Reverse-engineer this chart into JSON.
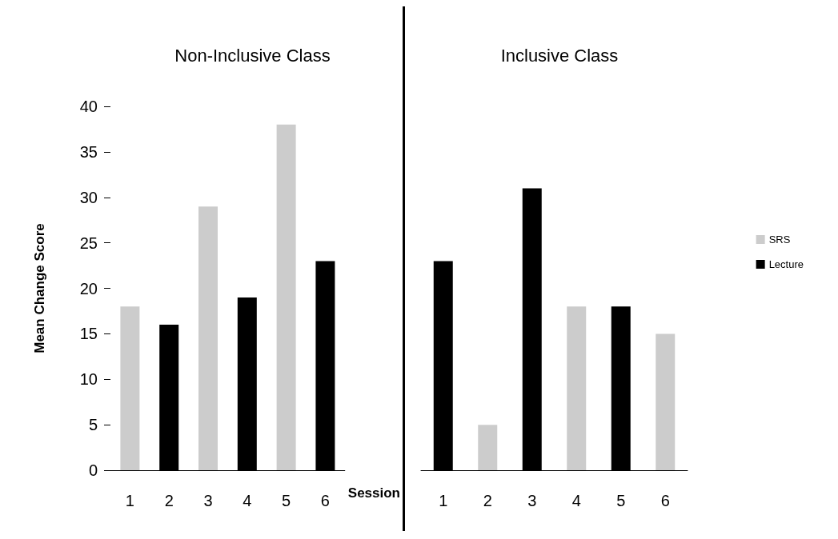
{
  "chart_data": [
    {
      "type": "bar",
      "title": "Non-Inclusive Class",
      "xlabel": "Session",
      "ylabel": "Mean Change Score",
      "categories": [
        "1",
        "2",
        "3",
        "4",
        "5",
        "6"
      ],
      "series": [
        {
          "color": "#cccccc",
          "values": [
            18,
            null,
            29,
            null,
            38,
            null
          ]
        },
        {
          "color": "#000000",
          "values": [
            null,
            16,
            null,
            19,
            null,
            23
          ]
        }
      ],
      "ylim": [
        0,
        40
      ],
      "yticks": [
        0,
        5,
        10,
        15,
        20,
        25,
        30,
        35,
        40
      ],
      "grid": false,
      "legend": false
    },
    {
      "type": "bar",
      "title": "Inclusive Class",
      "categories": [
        "1",
        "2",
        "3",
        "4",
        "5",
        "6"
      ],
      "series": [
        {
          "name": "SRS",
          "color": "#cccccc",
          "values": [
            null,
            5,
            null,
            18,
            null,
            15
          ]
        },
        {
          "name": "Lecture",
          "color": "#000000",
          "values": [
            23,
            null,
            31,
            null,
            18,
            null
          ]
        }
      ],
      "ylim": [
        0,
        40
      ],
      "yticks": [
        0,
        5,
        10,
        15,
        20,
        25,
        30,
        35,
        40
      ],
      "tick_labels": "x",
      "grid": false,
      "legend": "right"
    }
  ]
}
